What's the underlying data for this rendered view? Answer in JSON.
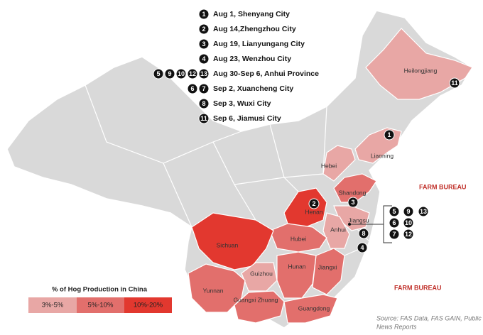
{
  "events": [
    {
      "markers": [
        "1"
      ],
      "text": "Aug 1, Shenyang City"
    },
    {
      "markers": [
        "2"
      ],
      "text": "Aug 14,Zhengzhou City"
    },
    {
      "markers": [
        "3"
      ],
      "text": "Aug 19, Lianyungang City"
    },
    {
      "markers": [
        "4"
      ],
      "text": "Aug 23, Wenzhou City"
    },
    {
      "markers": [
        "5",
        "9",
        "10",
        "12",
        "13"
      ],
      "text": "Aug 30-Sep 6, Anhui Province"
    },
    {
      "markers": [
        "6",
        "7"
      ],
      "text": "Sep 2, Xuancheng City"
    },
    {
      "markers": [
        "8"
      ],
      "text": "Sep 3, Wuxi City"
    },
    {
      "markers": [
        "11"
      ],
      "text": "Sep 6, Jiamusi City"
    }
  ],
  "legend": {
    "title": "% of Hog Production in China",
    "items": [
      {
        "label": "3%-5%",
        "color": "#e8a7a5"
      },
      {
        "label": "5%-10%",
        "color": "#e26f6c"
      },
      {
        "label": "10%-20%",
        "color": "#e2382f"
      }
    ]
  },
  "provinces": [
    {
      "name": "Heilongjiang",
      "category": 0
    },
    {
      "name": "Liaoning",
      "category": 0
    },
    {
      "name": "Hebei",
      "category": 0
    },
    {
      "name": "Shandong",
      "category": 1
    },
    {
      "name": "Henan",
      "category": 2
    },
    {
      "name": "Jiangsu",
      "category": 0
    },
    {
      "name": "Anhui",
      "category": 0
    },
    {
      "name": "Hubei",
      "category": 1
    },
    {
      "name": "Hunan",
      "category": 1
    },
    {
      "name": "Jiangxi",
      "category": 1
    },
    {
      "name": "Sichuan",
      "category": 2
    },
    {
      "name": "Guizhou",
      "category": 0
    },
    {
      "name": "Yunnan",
      "category": 1
    },
    {
      "name": "Guangxi Zhuang",
      "category": 1
    },
    {
      "name": "Guangdong",
      "category": 1
    }
  ],
  "map_markers": [
    "1",
    "11",
    "2",
    "3",
    "8",
    "4",
    "5",
    "9",
    "13",
    "6",
    "10",
    "7",
    "12"
  ],
  "watermarks": [
    "FARM BUREAU",
    "FARM BUREAU"
  ],
  "source": [
    "Source: FAS Data, FAS GAIN, Public",
    "News Reports"
  ]
}
